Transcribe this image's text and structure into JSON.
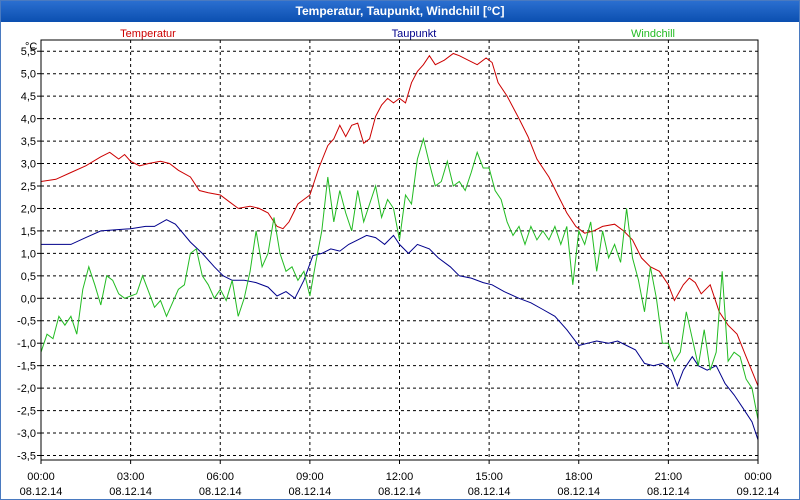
{
  "window": {
    "title": "Temperatur, Taupunkt, Windchill [°C]"
  },
  "chart_data": {
    "type": "line",
    "title": "Temperatur, Taupunkt, Windchill [°C]",
    "ylabel": "°C",
    "ylim": [
      -3.6,
      5.75
    ],
    "y_ticks": [
      "5,5",
      "5,0",
      "4,5",
      "4,0",
      "3,5",
      "3,0",
      "2,5",
      "2,0",
      "1,5",
      "1,0",
      "0,5",
      "0,0",
      "-0,5",
      "-1,0",
      "-1,5",
      "-2,0",
      "-2,5",
      "-3,0",
      "-3,5"
    ],
    "y_tick_values": [
      5.5,
      5.0,
      4.5,
      4.0,
      3.5,
      3.0,
      2.5,
      2.0,
      1.5,
      1.0,
      0.5,
      0.0,
      -0.5,
      -1.0,
      -1.5,
      -2.0,
      -2.5,
      -3.0,
      -3.5
    ],
    "xlim_hours": [
      0,
      24
    ],
    "x_ticks": [
      {
        "time": "00:00",
        "date": "08.12.14"
      },
      {
        "time": "03:00",
        "date": "08.12.14"
      },
      {
        "time": "06:00",
        "date": "08.12.14"
      },
      {
        "time": "09:00",
        "date": "08.12.14"
      },
      {
        "time": "12:00",
        "date": "08.12.14"
      },
      {
        "time": "15:00",
        "date": "08.12.14"
      },
      {
        "time": "18:00",
        "date": "08.12.14"
      },
      {
        "time": "21:00",
        "date": "08.12.14"
      },
      {
        "time": "00:00",
        "date": "09.12.14"
      }
    ],
    "grid": true,
    "series": [
      {
        "name": "Temperatur",
        "color": "#cc0000",
        "points": [
          [
            0,
            2.6
          ],
          [
            0.5,
            2.65
          ],
          [
            1,
            2.8
          ],
          [
            1.5,
            2.95
          ],
          [
            2,
            3.15
          ],
          [
            2.3,
            3.25
          ],
          [
            2.6,
            3.1
          ],
          [
            2.8,
            3.2
          ],
          [
            3,
            3.05
          ],
          [
            3.3,
            2.95
          ],
          [
            3.6,
            3.0
          ],
          [
            4,
            3.05
          ],
          [
            4.3,
            3.0
          ],
          [
            4.6,
            2.85
          ],
          [
            5,
            2.7
          ],
          [
            5.3,
            2.4
          ],
          [
            5.6,
            2.35
          ],
          [
            6,
            2.3
          ],
          [
            6.3,
            2.15
          ],
          [
            6.6,
            2.0
          ],
          [
            7,
            2.05
          ],
          [
            7.3,
            2.0
          ],
          [
            7.6,
            1.9
          ],
          [
            7.9,
            1.6
          ],
          [
            8.1,
            1.55
          ],
          [
            8.3,
            1.7
          ],
          [
            8.6,
            2.1
          ],
          [
            9,
            2.3
          ],
          [
            9.3,
            2.9
          ],
          [
            9.6,
            3.4
          ],
          [
            9.8,
            3.55
          ],
          [
            10,
            3.85
          ],
          [
            10.2,
            3.6
          ],
          [
            10.4,
            3.85
          ],
          [
            10.6,
            3.9
          ],
          [
            10.8,
            3.45
          ],
          [
            11,
            3.55
          ],
          [
            11.2,
            4.05
          ],
          [
            11.4,
            4.3
          ],
          [
            11.6,
            4.45
          ],
          [
            11.8,
            4.35
          ],
          [
            12,
            4.45
          ],
          [
            12.2,
            4.35
          ],
          [
            12.4,
            4.8
          ],
          [
            12.6,
            5.05
          ],
          [
            12.8,
            5.2
          ],
          [
            13,
            5.4
          ],
          [
            13.2,
            5.2
          ],
          [
            13.5,
            5.3
          ],
          [
            13.8,
            5.45
          ],
          [
            14,
            5.4
          ],
          [
            14.3,
            5.3
          ],
          [
            14.6,
            5.2
          ],
          [
            14.9,
            5.35
          ],
          [
            15.1,
            5.25
          ],
          [
            15.3,
            4.8
          ],
          [
            15.6,
            4.5
          ],
          [
            16,
            4.0
          ],
          [
            16.3,
            3.6
          ],
          [
            16.6,
            3.1
          ],
          [
            17,
            2.7
          ],
          [
            17.3,
            2.3
          ],
          [
            17.6,
            1.9
          ],
          [
            17.9,
            1.6
          ],
          [
            18.2,
            1.45
          ],
          [
            18.5,
            1.5
          ],
          [
            18.8,
            1.6
          ],
          [
            19.2,
            1.65
          ],
          [
            19.5,
            1.5
          ],
          [
            19.8,
            1.3
          ],
          [
            20.1,
            0.9
          ],
          [
            20.4,
            0.7
          ],
          [
            20.7,
            0.6
          ],
          [
            21,
            0.3
          ],
          [
            21.2,
            -0.05
          ],
          [
            21.5,
            0.3
          ],
          [
            21.7,
            0.45
          ],
          [
            21.9,
            0.35
          ],
          [
            22.1,
            0.1
          ],
          [
            22.4,
            0.3
          ],
          [
            22.7,
            -0.3
          ],
          [
            23,
            -0.6
          ],
          [
            23.3,
            -0.8
          ],
          [
            23.6,
            -1.3
          ],
          [
            24,
            -1.95
          ]
        ]
      },
      {
        "name": "Taupunkt",
        "color": "#00008b",
        "points": [
          [
            0,
            1.2
          ],
          [
            1,
            1.2
          ],
          [
            1.5,
            1.35
          ],
          [
            2,
            1.5
          ],
          [
            3,
            1.55
          ],
          [
            3.5,
            1.6
          ],
          [
            3.8,
            1.6
          ],
          [
            4.2,
            1.75
          ],
          [
            4.5,
            1.65
          ],
          [
            5,
            1.25
          ],
          [
            5.4,
            1.0
          ],
          [
            5.8,
            0.7
          ],
          [
            6.1,
            0.5
          ],
          [
            6.4,
            0.4
          ],
          [
            6.8,
            0.4
          ],
          [
            7.2,
            0.35
          ],
          [
            7.6,
            0.25
          ],
          [
            7.9,
            0.05
          ],
          [
            8.2,
            0.15
          ],
          [
            8.5,
            0.0
          ],
          [
            8.8,
            0.4
          ],
          [
            9.1,
            0.95
          ],
          [
            9.4,
            1.0
          ],
          [
            9.7,
            1.1
          ],
          [
            10,
            1.05
          ],
          [
            10.3,
            1.2
          ],
          [
            10.6,
            1.3
          ],
          [
            10.9,
            1.4
          ],
          [
            11.2,
            1.35
          ],
          [
            11.5,
            1.2
          ],
          [
            11.8,
            1.4
          ],
          [
            12,
            1.2
          ],
          [
            12.3,
            1.0
          ],
          [
            12.6,
            1.2
          ],
          [
            13,
            1.1
          ],
          [
            13.3,
            0.9
          ],
          [
            13.7,
            0.7
          ],
          [
            14,
            0.5
          ],
          [
            14.4,
            0.45
          ],
          [
            14.8,
            0.35
          ],
          [
            15.1,
            0.3
          ],
          [
            15.5,
            0.15
          ],
          [
            16,
            0.0
          ],
          [
            16.4,
            -0.1
          ],
          [
            16.8,
            -0.25
          ],
          [
            17.2,
            -0.4
          ],
          [
            17.6,
            -0.7
          ],
          [
            18,
            -1.05
          ],
          [
            18.3,
            -1.0
          ],
          [
            18.6,
            -0.95
          ],
          [
            19,
            -1.0
          ],
          [
            19.3,
            -0.95
          ],
          [
            19.6,
            -1.05
          ],
          [
            19.9,
            -1.15
          ],
          [
            20.2,
            -1.45
          ],
          [
            20.5,
            -1.5
          ],
          [
            20.8,
            -1.45
          ],
          [
            21.1,
            -1.6
          ],
          [
            21.3,
            -1.95
          ],
          [
            21.5,
            -1.6
          ],
          [
            21.8,
            -1.3
          ],
          [
            22,
            -1.5
          ],
          [
            22.3,
            -1.6
          ],
          [
            22.6,
            -1.5
          ],
          [
            22.9,
            -1.9
          ],
          [
            23.2,
            -2.15
          ],
          [
            23.5,
            -2.45
          ],
          [
            23.8,
            -2.75
          ],
          [
            24,
            -3.15
          ]
        ]
      },
      {
        "name": "Windchill",
        "color": "#22bb22",
        "points": [
          [
            0,
            -1.2
          ],
          [
            0.2,
            -0.8
          ],
          [
            0.4,
            -0.9
          ],
          [
            0.6,
            -0.4
          ],
          [
            0.8,
            -0.6
          ],
          [
            1,
            -0.4
          ],
          [
            1.2,
            -0.8
          ],
          [
            1.4,
            0.2
          ],
          [
            1.6,
            0.7
          ],
          [
            1.8,
            0.3
          ],
          [
            2,
            -0.15
          ],
          [
            2.2,
            0.5
          ],
          [
            2.4,
            0.4
          ],
          [
            2.6,
            0.1
          ],
          [
            2.8,
            0.0
          ],
          [
            3,
            0.05
          ],
          [
            3.2,
            0.1
          ],
          [
            3.4,
            0.5
          ],
          [
            3.6,
            0.15
          ],
          [
            3.8,
            -0.2
          ],
          [
            4,
            -0.05
          ],
          [
            4.2,
            -0.4
          ],
          [
            4.4,
            -0.1
          ],
          [
            4.6,
            0.2
          ],
          [
            4.8,
            0.3
          ],
          [
            5,
            1.0
          ],
          [
            5.2,
            1.1
          ],
          [
            5.4,
            0.5
          ],
          [
            5.6,
            0.3
          ],
          [
            5.8,
            0.0
          ],
          [
            6,
            0.2
          ],
          [
            6.2,
            -0.05
          ],
          [
            6.4,
            0.4
          ],
          [
            6.6,
            -0.4
          ],
          [
            6.8,
            0.0
          ],
          [
            7,
            0.6
          ],
          [
            7.2,
            1.5
          ],
          [
            7.4,
            0.7
          ],
          [
            7.6,
            1.0
          ],
          [
            7.8,
            1.8
          ],
          [
            8,
            1.0
          ],
          [
            8.2,
            0.6
          ],
          [
            8.4,
            0.7
          ],
          [
            8.6,
            0.4
          ],
          [
            8.8,
            0.6
          ],
          [
            9,
            0.05
          ],
          [
            9.2,
            0.8
          ],
          [
            9.4,
            1.5
          ],
          [
            9.6,
            2.7
          ],
          [
            9.8,
            1.7
          ],
          [
            10,
            2.4
          ],
          [
            10.2,
            1.9
          ],
          [
            10.4,
            1.5
          ],
          [
            10.6,
            2.4
          ],
          [
            10.8,
            1.7
          ],
          [
            11,
            2.1
          ],
          [
            11.2,
            2.5
          ],
          [
            11.4,
            1.8
          ],
          [
            11.6,
            2.2
          ],
          [
            11.8,
            2.0
          ],
          [
            12,
            1.3
          ],
          [
            12.2,
            2.3
          ],
          [
            12.4,
            2.1
          ],
          [
            12.6,
            3.1
          ],
          [
            12.8,
            3.55
          ],
          [
            13,
            3.0
          ],
          [
            13.2,
            2.5
          ],
          [
            13.4,
            2.6
          ],
          [
            13.6,
            3.05
          ],
          [
            13.8,
            2.5
          ],
          [
            14,
            2.6
          ],
          [
            14.2,
            2.4
          ],
          [
            14.4,
            2.8
          ],
          [
            14.6,
            3.25
          ],
          [
            14.8,
            2.9
          ],
          [
            15,
            2.9
          ],
          [
            15.2,
            2.4
          ],
          [
            15.4,
            2.2
          ],
          [
            15.6,
            1.7
          ],
          [
            15.8,
            1.4
          ],
          [
            16,
            1.6
          ],
          [
            16.2,
            1.2
          ],
          [
            16.4,
            1.6
          ],
          [
            16.6,
            1.3
          ],
          [
            16.8,
            1.5
          ],
          [
            17,
            1.3
          ],
          [
            17.2,
            1.6
          ],
          [
            17.4,
            1.2
          ],
          [
            17.6,
            1.6
          ],
          [
            17.8,
            0.3
          ],
          [
            18,
            1.5
          ],
          [
            18.2,
            1.2
          ],
          [
            18.4,
            1.7
          ],
          [
            18.6,
            0.6
          ],
          [
            18.8,
            1.5
          ],
          [
            19,
            0.9
          ],
          [
            19.2,
            1.2
          ],
          [
            19.4,
            0.8
          ],
          [
            19.6,
            2.0
          ],
          [
            19.8,
            0.9
          ],
          [
            20,
            0.4
          ],
          [
            20.2,
            -0.3
          ],
          [
            20.4,
            0.7
          ],
          [
            20.6,
            0.0
          ],
          [
            20.8,
            -1.0
          ],
          [
            21,
            -1.0
          ],
          [
            21.2,
            -1.4
          ],
          [
            21.4,
            -1.2
          ],
          [
            21.6,
            -0.3
          ],
          [
            21.8,
            -0.9
          ],
          [
            22,
            -1.5
          ],
          [
            22.2,
            -0.7
          ],
          [
            22.4,
            -1.6
          ],
          [
            22.6,
            -1.2
          ],
          [
            22.8,
            0.6
          ],
          [
            23,
            -1.4
          ],
          [
            23.2,
            -1.2
          ],
          [
            23.4,
            -1.3
          ],
          [
            23.6,
            -1.8
          ],
          [
            23.8,
            -2.0
          ],
          [
            24,
            -2.7
          ]
        ]
      }
    ]
  }
}
